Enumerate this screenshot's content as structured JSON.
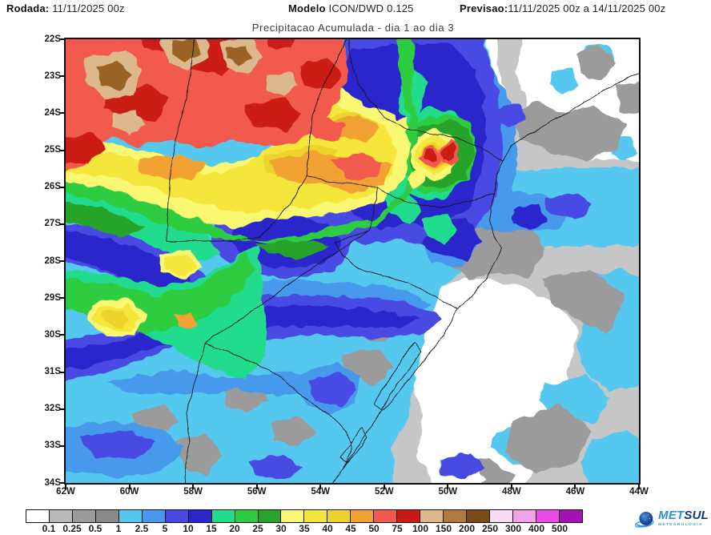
{
  "header": {
    "rodada_label": "Rodada:",
    "rodada_value": "11/11/2025 00z",
    "modelo_label": "Modelo",
    "modelo_value": "ICON/DWD 0.125",
    "previsao_label": "Previsao:",
    "previsao_value": "11/11/2025 00z a 14/11/2025 00z"
  },
  "title": "Precipitacao Acumulada - dia 1 ao dia 3",
  "map": {
    "y_ticks": [
      "22S",
      "23S",
      "24S",
      "25S",
      "26S",
      "27S",
      "28S",
      "29S",
      "30S",
      "31S",
      "32S",
      "33S",
      "34S"
    ],
    "x_ticks": [
      "62W",
      "60W",
      "58W",
      "56W",
      "54W",
      "52W",
      "50W",
      "48W",
      "46W",
      "44W"
    ]
  },
  "legend": {
    "labels": [
      "0.1",
      "0.25",
      "0.5",
      "1",
      "2.5",
      "5",
      "10",
      "15",
      "20",
      "25",
      "30",
      "35",
      "40",
      "45",
      "50",
      "75",
      "100",
      "150",
      "200",
      "250",
      "300",
      "400",
      "500"
    ],
    "colors": [
      "#FFFFFF",
      "#B9B9B9",
      "#9B9B9B",
      "#8A8A8A",
      "#55C8F0",
      "#4699EC",
      "#4A48E4",
      "#2B25CC",
      "#21DC8E",
      "#2ECC40",
      "#28A42A",
      "#FAF772",
      "#F4E63A",
      "#EED32B",
      "#F2A233",
      "#F25A4E",
      "#CB1A14",
      "#DCB88C",
      "#B1793A",
      "#7C4A16",
      "#F8DCF2",
      "#F1A3E6",
      "#ED4AE6",
      "#A411B5"
    ]
  },
  "logo": {
    "met": "MET",
    "sul": "SUL",
    "subtitle": "METEOROLOGIA"
  }
}
